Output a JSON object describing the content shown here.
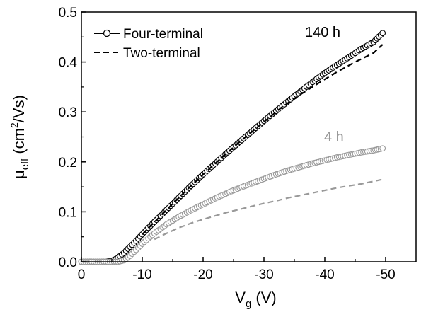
{
  "chart_data": {
    "type": "scatter",
    "xlabel": {
      "main": "V",
      "sub": "g",
      "unit": " (V)"
    },
    "ylabel": {
      "main": "μ",
      "sub": "eff",
      "unit_pre": " (cm",
      "sup": "2",
      "unit_post": "/Vs)"
    },
    "xlim": [
      0,
      -55
    ],
    "ylim": [
      0,
      0.5
    ],
    "x_ticks": [
      0,
      -10,
      -20,
      -30,
      -40,
      -50
    ],
    "x_tick_labels": [
      "0",
      "-10",
      "-20",
      "-30",
      "-40",
      "-50"
    ],
    "y_ticks": [
      0,
      0.1,
      0.2,
      0.3,
      0.4,
      0.5
    ],
    "y_tick_labels": [
      "0.0",
      "0.1",
      "0.2",
      "0.3",
      "0.4",
      "0.5"
    ],
    "legend": {
      "placement": "top-left",
      "entries": [
        {
          "label": "Four-terminal",
          "style": "line-circle"
        },
        {
          "label": "Two-terminal",
          "style": "dashed"
        }
      ]
    },
    "annotations": [
      {
        "text": "140 h",
        "color": "#000000"
      },
      {
        "text": "4 h",
        "color": "#999999"
      }
    ],
    "series": [
      {
        "name": "Four-terminal",
        "condition": "140 h",
        "style": "circle",
        "color": "#000000",
        "x": [
          0,
          -2,
          -4,
          -5,
          -6,
          -7,
          -8,
          -9,
          -10,
          -11,
          -12,
          -13,
          -14,
          -15,
          -16,
          -18,
          -20,
          -22,
          -24,
          -26,
          -28,
          -30,
          -32,
          -34,
          -36,
          -38,
          -40,
          -42,
          -44,
          -46,
          -48,
          -49.5
        ],
        "y": [
          0,
          0,
          0,
          0.002,
          0.008,
          0.018,
          0.03,
          0.042,
          0.055,
          0.068,
          0.08,
          0.092,
          0.104,
          0.116,
          0.128,
          0.152,
          0.175,
          0.197,
          0.219,
          0.24,
          0.261,
          0.282,
          0.302,
          0.322,
          0.341,
          0.36,
          0.378,
          0.394,
          0.41,
          0.426,
          0.44,
          0.458
        ]
      },
      {
        "name": "Two-terminal",
        "condition": "140 h",
        "style": "dashed",
        "color": "#000000",
        "x": [
          -10,
          -14,
          -18,
          -22,
          -26,
          -30,
          -33,
          -36,
          -39,
          -42,
          -45,
          -48,
          -49.5
        ],
        "y": [
          0.055,
          0.104,
          0.152,
          0.197,
          0.24,
          0.28,
          0.31,
          0.335,
          0.358,
          0.38,
          0.4,
          0.418,
          0.435
        ]
      },
      {
        "name": "Four-terminal",
        "condition": "4 h",
        "style": "circle",
        "color": "#999999",
        "x": [
          0,
          -3,
          -6,
          -7,
          -8,
          -9,
          -10,
          -11,
          -12,
          -13,
          -14,
          -16,
          -18,
          -20,
          -22,
          -24,
          -26,
          -28,
          -30,
          -32,
          -34,
          -36,
          -38,
          -40,
          -42,
          -44,
          -46,
          -48,
          -49.5
        ],
        "y": [
          0,
          0,
          0,
          0.003,
          0.012,
          0.024,
          0.036,
          0.047,
          0.057,
          0.066,
          0.075,
          0.09,
          0.103,
          0.115,
          0.127,
          0.138,
          0.148,
          0.157,
          0.166,
          0.175,
          0.183,
          0.19,
          0.197,
          0.203,
          0.209,
          0.214,
          0.219,
          0.223,
          0.227
        ]
      },
      {
        "name": "Two-terminal",
        "condition": "4 h",
        "style": "dashed",
        "color": "#999999",
        "x": [
          -12,
          -14,
          -16,
          -18,
          -20,
          -22,
          -24,
          -26,
          -28,
          -30,
          -32,
          -34,
          -36,
          -38,
          -40,
          -42,
          -44,
          -46,
          -48,
          -49.5
        ],
        "y": [
          0.045,
          0.057,
          0.068,
          0.077,
          0.085,
          0.092,
          0.099,
          0.105,
          0.111,
          0.117,
          0.122,
          0.128,
          0.133,
          0.138,
          0.143,
          0.148,
          0.152,
          0.156,
          0.161,
          0.165
        ]
      }
    ]
  }
}
